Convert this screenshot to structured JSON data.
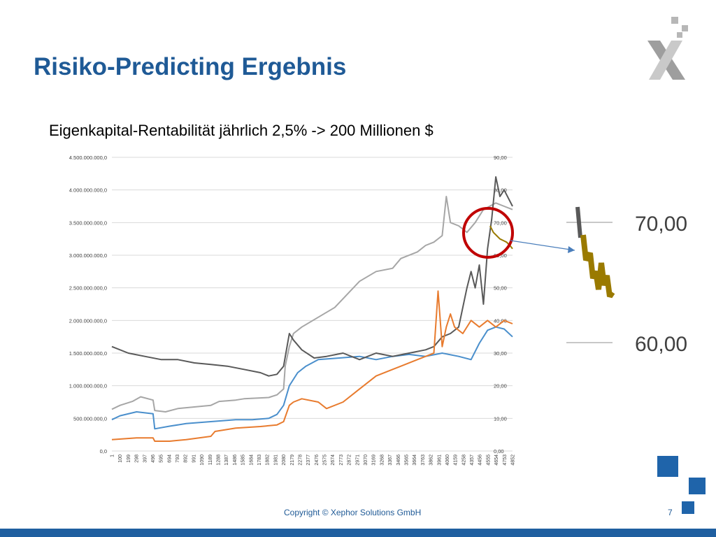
{
  "slide": {
    "title": "Risiko-Predicting Ergebnis",
    "subtitle": "Eigenkapital-Rentabilität jährlich 2,5% -> 200 Millionen $",
    "copyright": "Copyright © Xephor Solutions GmbH",
    "page_number": "7"
  },
  "colors": {
    "title": "#1f5a96",
    "accent_blue": "#1f64aa",
    "series_gray_light": "#a6a6a6",
    "series_gray_dark": "#595959",
    "series_blue": "#4a8fcc",
    "series_orange": "#e87b2e",
    "series_olive": "#9a7a00",
    "highlight_circle": "#c00000"
  },
  "chart_data": {
    "type": "line",
    "title": "",
    "xlabel": "",
    "ylabel": "",
    "grid": true,
    "legend": "none",
    "left_axis": {
      "ylim": [
        0,
        4500000000
      ],
      "tick_labels": [
        "0,0",
        "500.000.000,0",
        "1.000.000.000,0",
        "1.500.000.000,0",
        "2.000.000.000,0",
        "2.500.000.000,0",
        "3.000.000.000,0",
        "3.500.000.000,0",
        "4.000.000.000,0",
        "4.500.000.000,0"
      ]
    },
    "right_axis": {
      "ylim": [
        0,
        90
      ],
      "tick_labels": [
        "0,00",
        "10,00",
        "20,00",
        "30,00",
        "40,00",
        "50,00",
        "60,00",
        "70,00",
        "80,00",
        "90,00"
      ]
    },
    "x_ticks": [
      "1",
      "100",
      "199",
      "298",
      "397",
      "496",
      "595",
      "694",
      "793",
      "892",
      "991",
      "1090",
      "1189",
      "1288",
      "1387",
      "1486",
      "1585",
      "1684",
      "1783",
      "1882",
      "1981",
      "2080",
      "2179",
      "2278",
      "2377",
      "2476",
      "2575",
      "2674",
      "2773",
      "2872",
      "2971",
      "3070",
      "3169",
      "3268",
      "3367",
      "3466",
      "3565",
      "3664",
      "3763",
      "3862",
      "3961",
      "4060",
      "4159",
      "4258",
      "4357",
      "4456",
      "4555",
      "4654",
      "4753",
      "4852"
    ],
    "series": [
      {
        "color_key": "series_gray_light",
        "axis": "left",
        "x": [
          1,
          100,
          250,
          350,
          500,
          520,
          650,
          800,
          1200,
          1300,
          1500,
          1600,
          1900,
          2000,
          2080,
          2100,
          2150,
          2200,
          2300,
          2500,
          2700,
          3000,
          3200,
          3400,
          3500,
          3700,
          3800,
          3900,
          4000,
          4050,
          4100,
          4200,
          4300,
          4400,
          4500,
          4650,
          4750,
          4852
        ],
        "values": [
          640000000,
          700000000,
          760000000,
          830000000,
          780000000,
          620000000,
          600000000,
          650000000,
          700000000,
          760000000,
          780000000,
          800000000,
          820000000,
          860000000,
          950000000,
          1300000000,
          1600000000,
          1800000000,
          1900000000,
          2050000000,
          2200000000,
          2600000000,
          2750000000,
          2800000000,
          2950000000,
          3050000000,
          3150000000,
          3200000000,
          3300000000,
          3900000000,
          3500000000,
          3450000000,
          3350000000,
          3500000000,
          3700000000,
          3800000000,
          3750000000,
          3700000000
        ]
      },
      {
        "color_key": "series_blue",
        "axis": "left",
        "x": [
          1,
          100,
          300,
          500,
          520,
          700,
          900,
          1200,
          1500,
          1700,
          1900,
          2000,
          2080,
          2150,
          2250,
          2350,
          2500,
          2700,
          3000,
          3200,
          3400,
          3600,
          3800,
          4000,
          4200,
          4350,
          4450,
          4550,
          4650,
          4750,
          4852
        ],
        "values": [
          480000000,
          540000000,
          600000000,
          570000000,
          340000000,
          380000000,
          420000000,
          450000000,
          480000000,
          480000000,
          500000000,
          560000000,
          700000000,
          1000000000,
          1200000000,
          1300000000,
          1400000000,
          1420000000,
          1450000000,
          1400000000,
          1450000000,
          1480000000,
          1450000000,
          1500000000,
          1450000000,
          1400000000,
          1650000000,
          1850000000,
          1900000000,
          1870000000,
          1750000000
        ]
      }
    ],
    "secondary_series": [
      {
        "color_key": "series_gray_dark",
        "axis": "right",
        "x": [
          1,
          200,
          400,
          600,
          800,
          1000,
          1200,
          1400,
          1600,
          1800,
          1900,
          2000,
          2080,
          2150,
          2200,
          2300,
          2450,
          2600,
          2800,
          3000,
          3200,
          3400,
          3600,
          3800,
          3900,
          4000,
          4100,
          4200,
          4300,
          4350,
          4400,
          4450,
          4500,
          4550,
          4600,
          4650,
          4700,
          4750,
          4852
        ],
        "values": [
          32,
          30,
          29,
          28,
          28,
          27,
          26.5,
          26,
          25,
          24,
          23,
          23.5,
          26,
          36,
          34,
          31,
          28.5,
          29,
          30,
          28,
          30,
          29,
          30,
          31,
          32,
          35,
          36,
          38,
          50,
          55,
          50,
          57,
          45,
          62,
          71,
          84,
          78,
          80,
          75
        ]
      },
      {
        "color_key": "series_orange",
        "axis": "right",
        "x": [
          1,
          300,
          500,
          520,
          700,
          900,
          1200,
          1250,
          1500,
          1800,
          2000,
          2080,
          2150,
          2200,
          2300,
          2500,
          2600,
          2800,
          3000,
          3200,
          3400,
          3500,
          3700,
          3800,
          3900,
          3950,
          4000,
          4050,
          4100,
          4150,
          4250,
          4350,
          4450,
          4550,
          4650,
          4752,
          4852
        ],
        "values": [
          3.5,
          4,
          4,
          3,
          3,
          3.5,
          4.5,
          6,
          7,
          7.5,
          8,
          9,
          14,
          15,
          16,
          15,
          13,
          15,
          19,
          23,
          25,
          26,
          28,
          29,
          30,
          49,
          32,
          38,
          42,
          38,
          36,
          40,
          38,
          40,
          38,
          40,
          39
        ]
      },
      {
        "color_key": "series_olive",
        "axis": "right",
        "x": [
          4580,
          4620,
          4660,
          4700,
          4740,
          4780,
          4820,
          4852
        ],
        "values": [
          69,
          67,
          66,
          65,
          64.5,
          64,
          63,
          62
        ]
      }
    ],
    "zoom_inset": {
      "tick_labels": [
        "70,00",
        "60,00"
      ]
    }
  }
}
